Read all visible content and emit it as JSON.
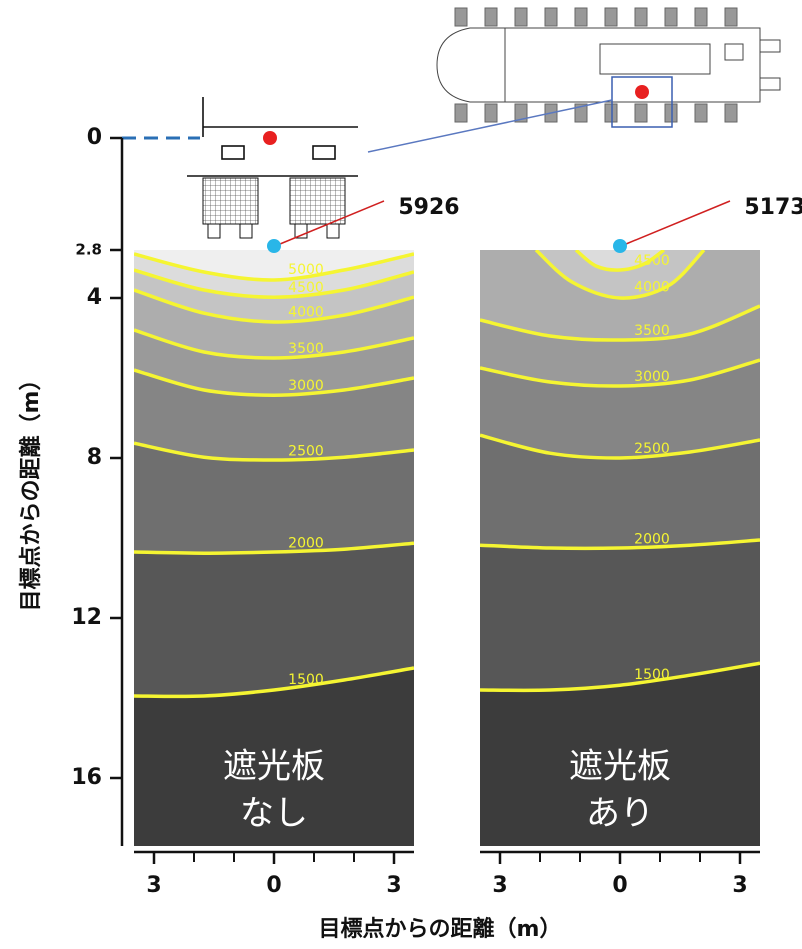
{
  "chart_data": {
    "type": "contour",
    "y_label": "目標点からの距離（m）",
    "x_label": "目標点からの距離（m）",
    "ylim": [
      0,
      17.7
    ],
    "yticks": [
      0,
      2.8,
      4,
      8,
      12,
      16
    ],
    "xlim": [
      -3.5,
      3.5
    ],
    "xticks": [
      {
        "value": -3,
        "label": "3"
      },
      0,
      3
    ],
    "xminor": [
      -2,
      -1,
      1,
      2
    ],
    "line_color": "#f5f532",
    "base_color": "#3c3c3c",
    "peak_color": "#29b6e8",
    "panels": [
      {
        "label": [
          "遮光板",
          "なし"
        ],
        "top": 2.8,
        "peak": {
          "x": 0,
          "y": 2.8,
          "value": 5926
        },
        "contours": [
          {
            "level": 1500,
            "fill": "#575757",
            "x": [
              -3.5,
              -1.75,
              0,
              1.75,
              3.5
            ],
            "y": [
              13.95,
              13.95,
              13.8,
              13.55,
              13.25
            ]
          },
          {
            "level": 2000,
            "fill": "#6f6f6f",
            "x": [
              -3.5,
              -1.75,
              0,
              1.75,
              3.5
            ],
            "y": [
              10.35,
              10.38,
              10.35,
              10.28,
              10.13
            ]
          },
          {
            "level": 2500,
            "fill": "#858585",
            "x": [
              -3.5,
              -1.75,
              0,
              1.75,
              3.5
            ],
            "y": [
              7.63,
              7.98,
              8.05,
              7.98,
              7.8
            ]
          },
          {
            "level": 3000,
            "fill": "#9a9a9a",
            "x": [
              -3.5,
              -1.75,
              0,
              1.75,
              3.5
            ],
            "y": [
              5.8,
              6.3,
              6.43,
              6.3,
              6.0
            ]
          },
          {
            "level": 3500,
            "fill": "#adadad",
            "x": [
              -3.5,
              -1.75,
              0,
              1.75,
              3.5
            ],
            "y": [
              4.8,
              5.35,
              5.5,
              5.35,
              5.0
            ]
          },
          {
            "level": 4000,
            "fill": "#c4c4c4",
            "x": [
              -3.5,
              -1.75,
              0,
              1.75,
              3.5
            ],
            "y": [
              3.8,
              4.38,
              4.6,
              4.43,
              3.98
            ]
          },
          {
            "level": 4500,
            "fill": "#dcdcdc",
            "x": [
              -3.5,
              -1.75,
              0,
              1.75,
              3.5
            ],
            "y": [
              3.3,
              3.8,
              3.98,
              3.8,
              3.35
            ]
          },
          {
            "level": 5000,
            "fill": "#efefef",
            "x": [
              -3.5,
              -1.75,
              0,
              1.75,
              3.5
            ],
            "y": [
              2.9,
              3.35,
              3.55,
              3.3,
              2.9
            ]
          }
        ]
      },
      {
        "label": [
          "遮光板",
          "あり"
        ],
        "top": 2.8,
        "peak": {
          "x": 0,
          "y": 2.8,
          "value": 5173
        },
        "contours": [
          {
            "level": 1500,
            "fill": "#575757",
            "x": [
              -3.5,
              -1.75,
              0,
              1.75,
              3.5
            ],
            "y": [
              13.8,
              13.8,
              13.68,
              13.43,
              13.13
            ]
          },
          {
            "level": 2000,
            "fill": "#6f6f6f",
            "x": [
              -3.5,
              -1.75,
              0,
              1.75,
              3.5
            ],
            "y": [
              10.18,
              10.25,
              10.25,
              10.18,
              10.05
            ]
          },
          {
            "level": 2500,
            "fill": "#858585",
            "x": [
              -3.5,
              -1.75,
              0,
              1.75,
              3.5
            ],
            "y": [
              7.43,
              7.88,
              8.0,
              7.85,
              7.55
            ]
          },
          {
            "level": 3000,
            "fill": "#9a9a9a",
            "x": [
              -3.5,
              -1.75,
              0,
              1.75,
              3.5
            ],
            "y": [
              5.75,
              6.1,
              6.2,
              6.05,
              5.55
            ]
          },
          {
            "level": 3500,
            "fill": "#adadad",
            "x": [
              -3.5,
              -1.75,
              0,
              1.75,
              3.5
            ],
            "y": [
              4.55,
              4.95,
              5.05,
              4.9,
              4.2
            ]
          },
          {
            "level": 4000,
            "fill": "#c4c4c4",
            "x": [
              -2.1,
              -1.2,
              0,
              1.2,
              2.1
            ],
            "y": [
              2.8,
              3.6,
              4.0,
              3.7,
              2.8
            ]
          },
          {
            "level": 4500,
            "fill": "#dcdcdc",
            "x": [
              -1.1,
              -0.6,
              0,
              0.6,
              1.1
            ],
            "y": [
              2.8,
              3.2,
              3.3,
              3.15,
              2.8
            ]
          }
        ]
      }
    ]
  }
}
